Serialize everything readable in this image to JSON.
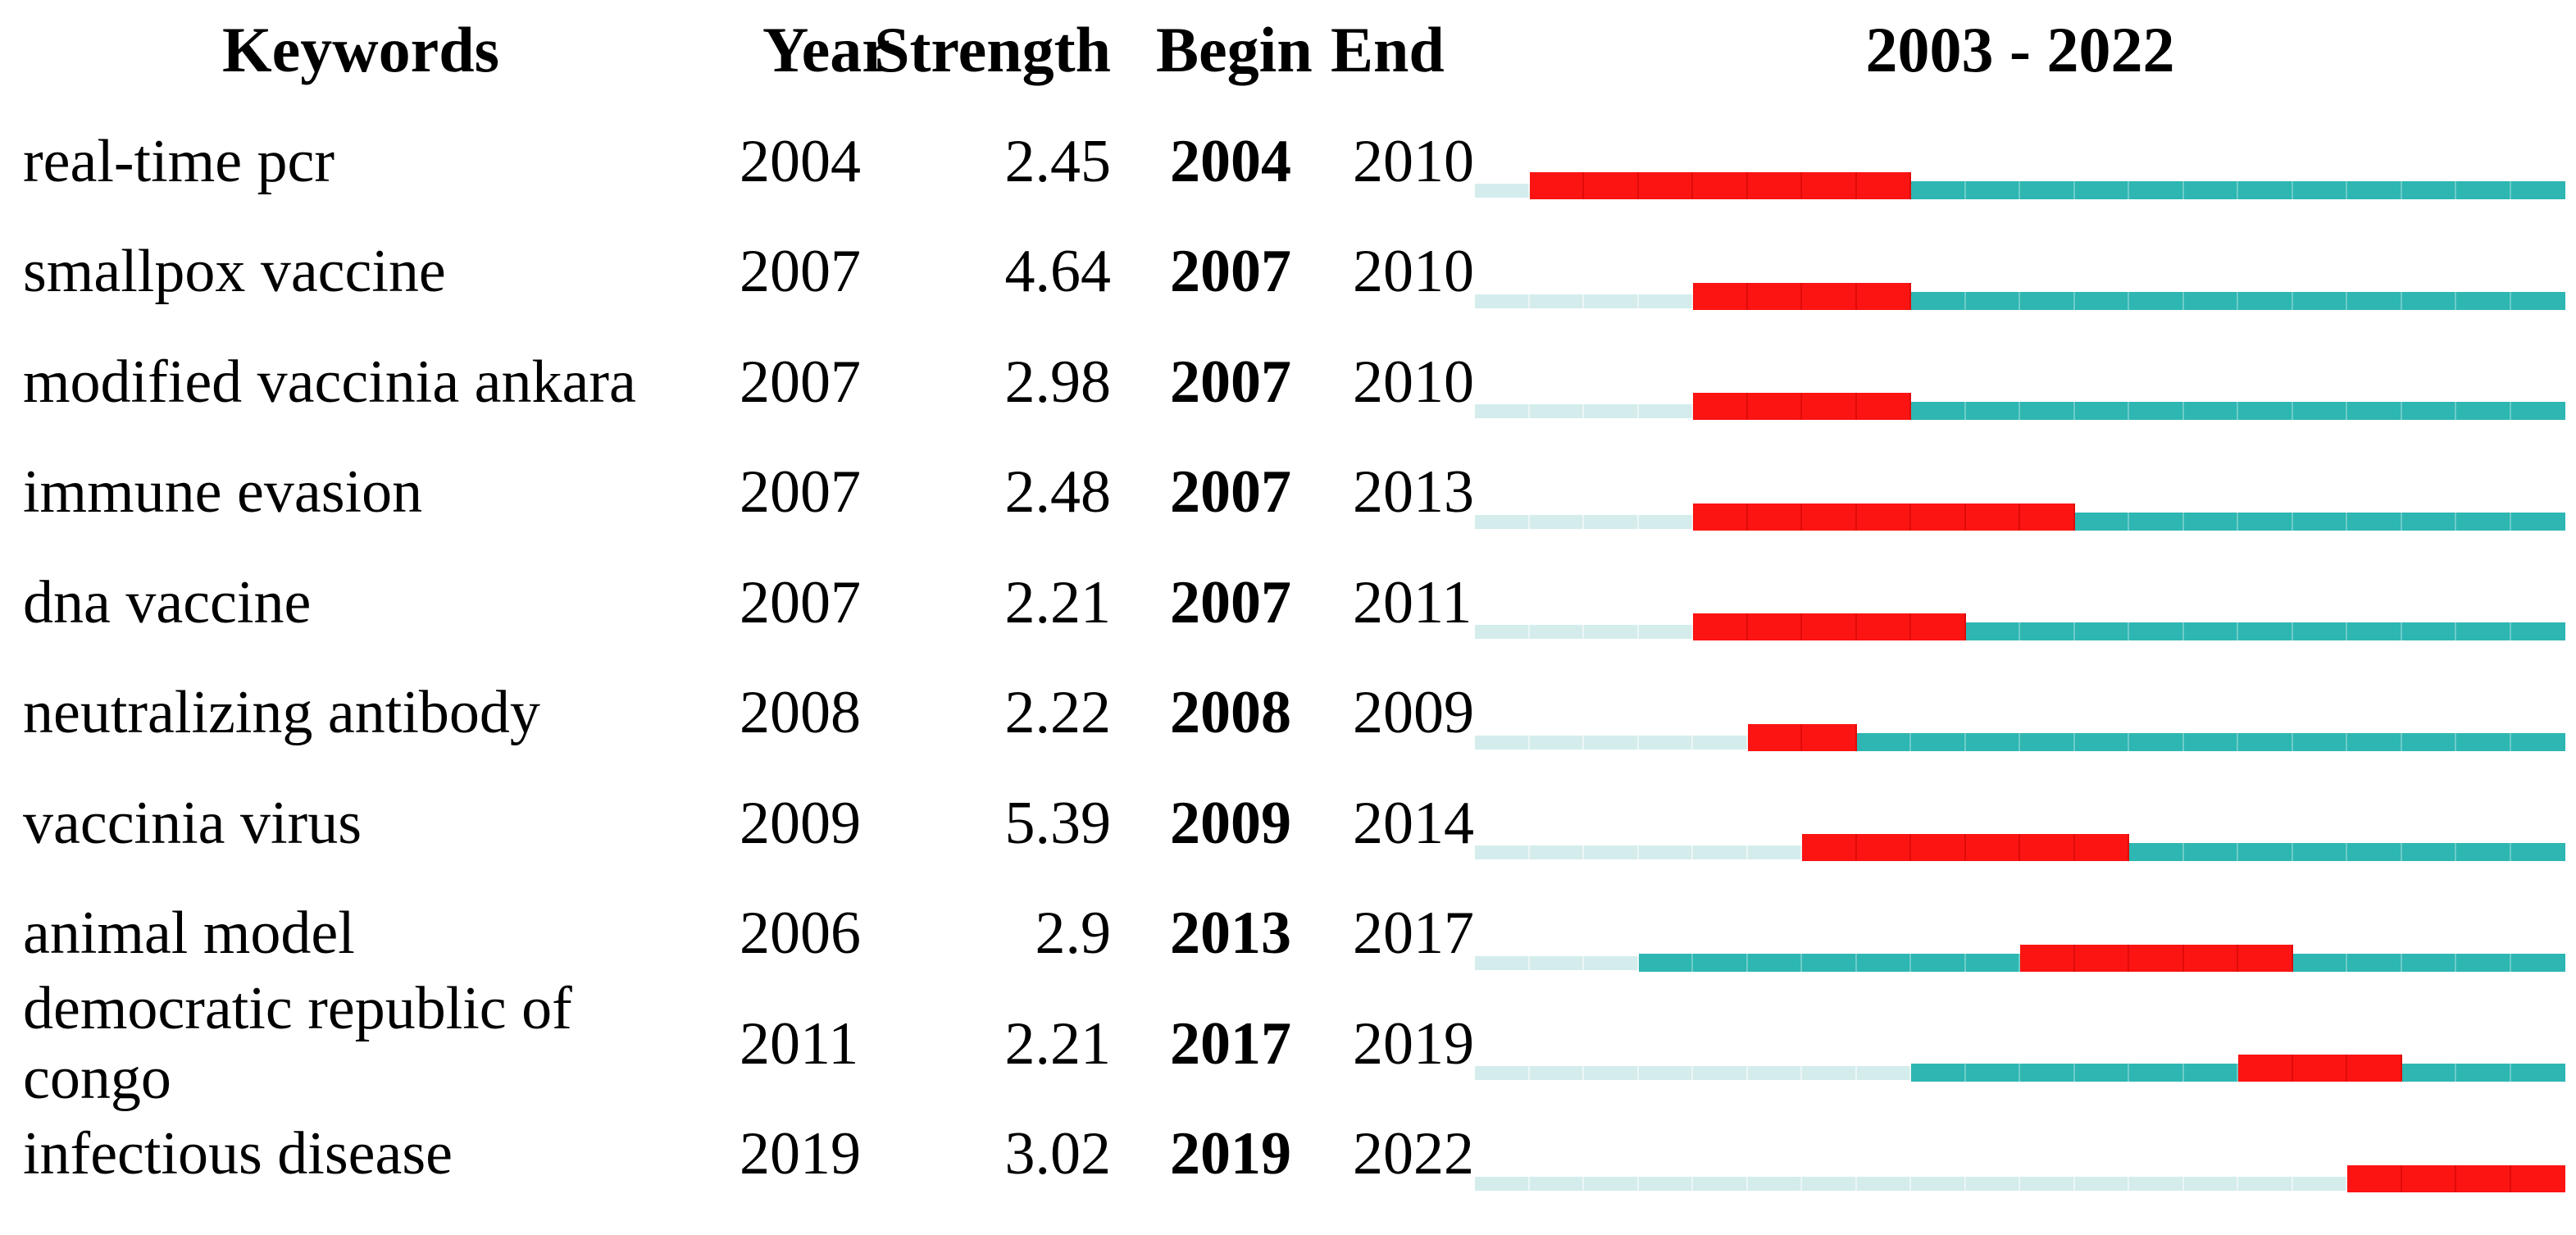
{
  "title": "2003 - 2022",
  "header": {
    "keywords": "Keywords",
    "year": "Year",
    "strength": "Strength",
    "begin": "Begin",
    "end": "End",
    "range": "2003 - 2022"
  },
  "colors": {
    "burst": "#FB1412",
    "active": "#2EB6B2",
    "pre_appearance": "#D4ECEC",
    "text": "#000000",
    "background": "#FFFFFF"
  },
  "chart_data": {
    "type": "bar",
    "subtype": "citation-burst-timeline",
    "title": "2003 - 2022",
    "columns": [
      "Keywords",
      "Year",
      "Strength",
      "Begin",
      "End"
    ],
    "x_range": [
      2003,
      2022
    ],
    "legend_semantics": {
      "pre_appearance": "light cyan: years before keyword first appears",
      "active": "teal: years keyword is present",
      "burst": "red: citation burst period (Begin to End inclusive)"
    },
    "rows": [
      {
        "keyword": "real-time pcr",
        "year": 2004,
        "strength": "2.45",
        "begin": 2004,
        "end": 2010
      },
      {
        "keyword": "smallpox vaccine",
        "year": 2007,
        "strength": "4.64",
        "begin": 2007,
        "end": 2010
      },
      {
        "keyword": "modified vaccinia ankara",
        "year": 2007,
        "strength": "2.98",
        "begin": 2007,
        "end": 2010
      },
      {
        "keyword": "immune evasion",
        "year": 2007,
        "strength": "2.48",
        "begin": 2007,
        "end": 2013
      },
      {
        "keyword": "dna vaccine",
        "year": 2007,
        "strength": "2.21",
        "begin": 2007,
        "end": 2011
      },
      {
        "keyword": "neutralizing antibody",
        "year": 2008,
        "strength": "2.22",
        "begin": 2008,
        "end": 2009
      },
      {
        "keyword": "vaccinia virus",
        "year": 2009,
        "strength": "5.39",
        "begin": 2009,
        "end": 2014
      },
      {
        "keyword": "animal model",
        "year": 2006,
        "strength": "2.9",
        "begin": 2013,
        "end": 2017
      },
      {
        "keyword": "democratic republic of congo",
        "year": 2011,
        "strength": "2.21",
        "begin": 2017,
        "end": 2019
      },
      {
        "keyword": "infectious disease",
        "year": 2019,
        "strength": "3.02",
        "begin": 2019,
        "end": 2022
      }
    ]
  }
}
